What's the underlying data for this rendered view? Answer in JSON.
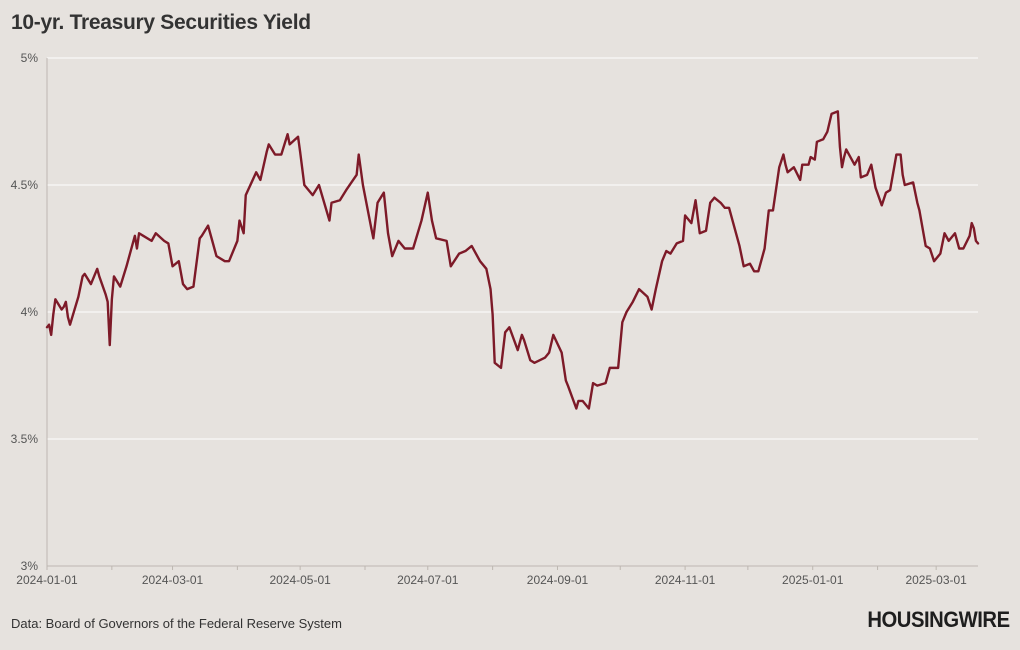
{
  "title": "10-yr. Treasury Securities Yield",
  "source": "Data: Board of Governors of the Federal Reserve System",
  "logo": "HOUSINGWIRE",
  "colors": {
    "background": "#e6e2de",
    "line": "#7d1a28",
    "grid": "#ffffff",
    "axis": "#bdb7b1"
  },
  "chart_data": {
    "type": "line",
    "title": "10-yr. Treasury Securities Yield",
    "xlabel": "",
    "ylabel": "",
    "y_unit": "%",
    "ylim": [
      3,
      5
    ],
    "y_ticks": [
      3,
      3.5,
      4,
      4.5,
      5
    ],
    "y_tick_labels": [
      "3%",
      "3.5%",
      "4%",
      "4.5%",
      "5%"
    ],
    "xlim": [
      "2024-01-01",
      "2025-03-21"
    ],
    "x_ticks": [
      "2024-01-01",
      "2024-03-01",
      "2024-05-01",
      "2024-07-01",
      "2024-09-01",
      "2024-11-01",
      "2025-01-01",
      "2025-03-01"
    ],
    "grid": "horizontal",
    "series": [
      {
        "color": "#7d1a28",
        "x": [
          "2024-01-01",
          "2024-01-02",
          "2024-01-03",
          "2024-01-04",
          "2024-01-05",
          "2024-01-08",
          "2024-01-09",
          "2024-01-10",
          "2024-01-11",
          "2024-01-12",
          "2024-01-16",
          "2024-01-17",
          "2024-01-18",
          "2024-01-19",
          "2024-01-22",
          "2024-01-25",
          "2024-01-26",
          "2024-01-29",
          "2024-01-30",
          "2024-01-31",
          "2024-02-01",
          "2024-02-02",
          "2024-02-05",
          "2024-02-08",
          "2024-02-12",
          "2024-02-13",
          "2024-02-14",
          "2024-02-16",
          "2024-02-20",
          "2024-02-22",
          "2024-02-26",
          "2024-02-28",
          "2024-03-01",
          "2024-03-04",
          "2024-03-06",
          "2024-03-08",
          "2024-03-11",
          "2024-03-14",
          "2024-03-15",
          "2024-03-18",
          "2024-03-20",
          "2024-03-22",
          "2024-03-26",
          "2024-03-28",
          "2024-04-01",
          "2024-04-02",
          "2024-04-04",
          "2024-04-05",
          "2024-04-10",
          "2024-04-12",
          "2024-04-15",
          "2024-04-16",
          "2024-04-19",
          "2024-04-22",
          "2024-04-25",
          "2024-04-26",
          "2024-04-30",
          "2024-05-01",
          "2024-05-03",
          "2024-05-07",
          "2024-05-10",
          "2024-05-15",
          "2024-05-16",
          "2024-05-20",
          "2024-05-23",
          "2024-05-28",
          "2024-05-29",
          "2024-05-31",
          "2024-06-04",
          "2024-06-05",
          "2024-06-07",
          "2024-06-10",
          "2024-06-12",
          "2024-06-14",
          "2024-06-17",
          "2024-06-20",
          "2024-06-24",
          "2024-06-28",
          "2024-07-01",
          "2024-07-03",
          "2024-07-05",
          "2024-07-10",
          "2024-07-12",
          "2024-07-16",
          "2024-07-19",
          "2024-07-22",
          "2024-07-26",
          "2024-07-29",
          "2024-07-31",
          "2024-08-01",
          "2024-08-02",
          "2024-08-05",
          "2024-08-07",
          "2024-08-09",
          "2024-08-13",
          "2024-08-15",
          "2024-08-16",
          "2024-08-19",
          "2024-08-21",
          "2024-08-26",
          "2024-08-28",
          "2024-08-30",
          "2024-09-03",
          "2024-09-05",
          "2024-09-06",
          "2024-09-10",
          "2024-09-11",
          "2024-09-13",
          "2024-09-16",
          "2024-09-18",
          "2024-09-20",
          "2024-09-24",
          "2024-09-26",
          "2024-09-30",
          "2024-10-02",
          "2024-10-04",
          "2024-10-07",
          "2024-10-10",
          "2024-10-14",
          "2024-10-16",
          "2024-10-18",
          "2024-10-21",
          "2024-10-23",
          "2024-10-25",
          "2024-10-28",
          "2024-10-31",
          "2024-11-01",
          "2024-11-04",
          "2024-11-06",
          "2024-11-08",
          "2024-11-11",
          "2024-11-13",
          "2024-11-15",
          "2024-11-18",
          "2024-11-20",
          "2024-11-22",
          "2024-11-26",
          "2024-11-27",
          "2024-11-29",
          "2024-12-02",
          "2024-12-04",
          "2024-12-06",
          "2024-12-09",
          "2024-12-11",
          "2024-12-13",
          "2024-12-16",
          "2024-12-18",
          "2024-12-19",
          "2024-12-20",
          "2024-12-23",
          "2024-12-26",
          "2024-12-27",
          "2024-12-30",
          "2024-12-31",
          "2025-01-02",
          "2025-01-03",
          "2025-01-06",
          "2025-01-08",
          "2025-01-10",
          "2025-01-13",
          "2025-01-14",
          "2025-01-15",
          "2025-01-16",
          "2025-01-17",
          "2025-01-21",
          "2025-01-23",
          "2025-01-24",
          "2025-01-27",
          "2025-01-29",
          "2025-01-31",
          "2025-02-03",
          "2025-02-05",
          "2025-02-07",
          "2025-02-10",
          "2025-02-12",
          "2025-02-13",
          "2025-02-14",
          "2025-02-18",
          "2025-02-20",
          "2025-02-21",
          "2025-02-24",
          "2025-02-26",
          "2025-02-28",
          "2025-03-03",
          "2025-03-05",
          "2025-03-07",
          "2025-03-10",
          "2025-03-12",
          "2025-03-14",
          "2025-03-17",
          "2025-03-18",
          "2025-03-19",
          "2025-03-20",
          "2025-03-21"
        ],
        "y": [
          3.94,
          3.95,
          3.91,
          3.99,
          4.05,
          4.01,
          4.02,
          4.04,
          3.98,
          3.95,
          4.06,
          4.1,
          4.14,
          4.15,
          4.11,
          4.17,
          4.14,
          4.07,
          4.04,
          3.87,
          4.05,
          4.14,
          4.1,
          4.18,
          4.3,
          4.25,
          4.31,
          4.3,
          4.28,
          4.31,
          4.28,
          4.27,
          4.18,
          4.2,
          4.11,
          4.09,
          4.1,
          4.29,
          4.3,
          4.34,
          4.28,
          4.22,
          4.2,
          4.2,
          4.28,
          4.36,
          4.31,
          4.46,
          4.55,
          4.52,
          4.63,
          4.66,
          4.62,
          4.62,
          4.7,
          4.66,
          4.69,
          4.63,
          4.5,
          4.46,
          4.5,
          4.36,
          4.43,
          4.44,
          4.48,
          4.54,
          4.62,
          4.5,
          4.33,
          4.29,
          4.43,
          4.47,
          4.31,
          4.22,
          4.28,
          4.25,
          4.25,
          4.36,
          4.47,
          4.36,
          4.29,
          4.28,
          4.18,
          4.23,
          4.24,
          4.26,
          4.2,
          4.17,
          4.09,
          3.99,
          3.8,
          3.78,
          3.92,
          3.94,
          3.85,
          3.91,
          3.89,
          3.81,
          3.8,
          3.82,
          3.84,
          3.91,
          3.84,
          3.73,
          3.71,
          3.62,
          3.65,
          3.65,
          3.62,
          3.72,
          3.71,
          3.72,
          3.78,
          3.78,
          3.96,
          4.0,
          4.04,
          4.09,
          4.06,
          4.01,
          4.09,
          4.2,
          4.24,
          4.23,
          4.27,
          4.28,
          4.38,
          4.35,
          4.44,
          4.31,
          4.32,
          4.43,
          4.45,
          4.43,
          4.41,
          4.41,
          4.29,
          4.26,
          4.18,
          4.19,
          4.16,
          4.16,
          4.25,
          4.4,
          4.4,
          4.57,
          4.62,
          4.58,
          4.55,
          4.57,
          4.52,
          4.58,
          4.58,
          4.61,
          4.6,
          4.67,
          4.68,
          4.71,
          4.78,
          4.79,
          4.65,
          4.57,
          4.61,
          4.64,
          4.58,
          4.61,
          4.53,
          4.54,
          4.58,
          4.49,
          4.42,
          4.47,
          4.48,
          4.62,
          4.62,
          4.54,
          4.5,
          4.51,
          4.43,
          4.4,
          4.26,
          4.25,
          4.2,
          4.23,
          4.31,
          4.28,
          4.31,
          4.25,
          4.25,
          4.3,
          4.35,
          4.33,
          4.28,
          4.27
        ]
      }
    ]
  }
}
